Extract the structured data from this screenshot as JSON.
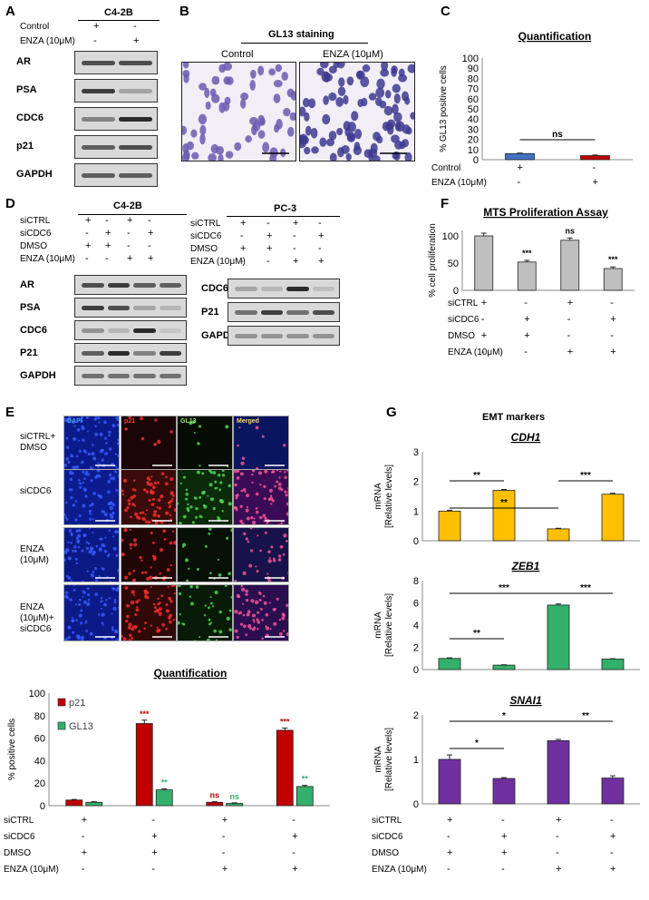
{
  "panels": {
    "a": "A",
    "b": "B",
    "c": "C",
    "d": "D",
    "e": "E",
    "f": "F",
    "g": "G"
  },
  "panelA": {
    "cell_line": "C4-2B",
    "conditions": [
      {
        "label": "Control",
        "values": [
          "+",
          "-"
        ]
      },
      {
        "label": "ENZA (10μM)",
        "values": [
          "-",
          "+"
        ]
      }
    ],
    "blots": [
      "AR",
      "PSA",
      "CDC6",
      "p21",
      "GAPDH"
    ]
  },
  "panelB": {
    "title": "GL13 staining",
    "images": [
      "Control",
      "ENZA (10μM)"
    ]
  },
  "panelD": {
    "left": {
      "cell_line": "C4-2B",
      "blots": [
        "AR",
        "PSA",
        "CDC6",
        "P21",
        "GAPDH"
      ]
    },
    "right": {
      "cell_line": "PC-3",
      "blots": [
        "CDC6",
        "P21",
        "GAPDH"
      ]
    },
    "conditions": [
      {
        "label": "siCTRL",
        "values": [
          "+",
          "-",
          "+",
          "-"
        ]
      },
      {
        "label": "siCDC6",
        "values": [
          "-",
          "+",
          "-",
          "+"
        ]
      },
      {
        "label": "DMSO",
        "values": [
          "+",
          "+",
          "-",
          "-"
        ]
      },
      {
        "label": "ENZA (10μM)",
        "values": [
          "-",
          "-",
          "+",
          "+"
        ]
      }
    ]
  },
  "panelE": {
    "channels": [
      "DAPI",
      "p21",
      "GL13",
      "Merged"
    ],
    "rows": [
      "siCTRL+ DMSO",
      "siCDC6",
      "ENZA (10μM)",
      "ENZA (10μM)+ siCDC6"
    ],
    "channel_colors": [
      "#4aa3ff",
      "#ff3b3b",
      "#9fe26a",
      "#ffd966"
    ]
  },
  "shared_conditions": [
    {
      "label": "siCTRL",
      "values": [
        "+",
        "-",
        "+",
        "-"
      ]
    },
    {
      "label": "siCDC6",
      "values": [
        "-",
        "+",
        "-",
        "+"
      ]
    },
    {
      "label": "DMSO",
      "values": [
        "+",
        "+",
        "-",
        "-"
      ]
    },
    {
      "label": "ENZA (10μM)",
      "values": [
        "-",
        "-",
        "+",
        "+"
      ]
    }
  ],
  "chart_data": [
    {
      "id": "C",
      "type": "bar",
      "title": "Quantification",
      "ylabel": "% GL13 positive cells",
      "ylim": [
        0,
        100
      ],
      "yticks": [
        0,
        10,
        20,
        30,
        40,
        50,
        60,
        70,
        80,
        90,
        100
      ],
      "categories": [
        "Control",
        "ENZA"
      ],
      "values": [
        6,
        4
      ],
      "errors": [
        0.5,
        0.6
      ],
      "colors": [
        "#4472c4",
        "#c00000"
      ],
      "conditions": [
        {
          "label": "Control",
          "values": [
            "+",
            "-"
          ]
        },
        {
          "label": "ENZA (10μM)",
          "values": [
            "-",
            "+"
          ]
        }
      ],
      "annotations": [
        {
          "text": "ns",
          "from": 0,
          "to": 1
        }
      ]
    },
    {
      "id": "F",
      "type": "bar",
      "title": "MTS Proliferation Assay",
      "ylabel": "% cell proliferation",
      "ylim": [
        0,
        110
      ],
      "yticks": [
        0,
        50,
        100
      ],
      "values": [
        100,
        52,
        92,
        40
      ],
      "errors": [
        5,
        3,
        4,
        3
      ],
      "colors": [
        "#bfbfbf",
        "#bfbfbf",
        "#bfbfbf",
        "#bfbfbf"
      ],
      "sig": [
        "",
        "***",
        "ns",
        "***"
      ]
    },
    {
      "id": "E-quant",
      "type": "bar",
      "title": "Quantification",
      "ylabel": "% positive cells",
      "ylim": [
        0,
        100
      ],
      "yticks": [
        0,
        20,
        40,
        60,
        80,
        100
      ],
      "series": [
        {
          "name": "p21",
          "values": [
            5,
            73,
            3,
            67
          ],
          "errors": [
            0.5,
            3,
            0.5,
            2
          ],
          "color": "#c00000",
          "sig": [
            "",
            "***",
            "ns",
            "***"
          ],
          "sig_color": "#c00000"
        },
        {
          "name": "GL13",
          "values": [
            3,
            14,
            2,
            17
          ],
          "errors": [
            0.5,
            1,
            0.5,
            1
          ],
          "color": "#33b06b",
          "sig": [
            "",
            "**",
            "ns",
            "**"
          ],
          "sig_color": "#33b06b"
        }
      ]
    },
    {
      "id": "G-CDH1",
      "type": "bar",
      "title": "CDH1",
      "ylabel": "mRNA [Relative levels]",
      "ylim": [
        0,
        3
      ],
      "yticks": [
        0,
        1,
        2,
        3
      ],
      "values": [
        1.0,
        1.7,
        0.4,
        1.57
      ],
      "errors": [
        0.03,
        0.03,
        0.02,
        0.03
      ],
      "color": "#ffc000",
      "annotations": [
        {
          "text": "**",
          "from": 0,
          "to": 2
        },
        {
          "text": "**",
          "from": 0,
          "to": 1
        },
        {
          "text": "***",
          "from": 2,
          "to": 3
        }
      ]
    },
    {
      "id": "G-ZEB1",
      "type": "bar",
      "title": "ZEB1",
      "ylabel": "mRNA [Relative levels]",
      "ylim": [
        0,
        8
      ],
      "yticks": [
        0,
        2,
        4,
        6,
        8
      ],
      "values": [
        1.0,
        0.4,
        5.8,
        0.95
      ],
      "errors": [
        0.05,
        0.03,
        0.1,
        0.03
      ],
      "color": "#33b06b",
      "annotations": [
        {
          "text": "***",
          "from": 0,
          "to": 2
        },
        {
          "text": "***",
          "from": 2,
          "to": 3
        },
        {
          "text": "**",
          "from": 0,
          "to": 1
        }
      ]
    },
    {
      "id": "G-SNAI1",
      "type": "bar",
      "title": "SNAI1",
      "ylabel": "mRNA [Relative levels]",
      "ylim": [
        0,
        2
      ],
      "yticks": [
        0,
        1,
        2
      ],
      "values": [
        1.0,
        0.57,
        1.42,
        0.58
      ],
      "errors": [
        0.1,
        0.02,
        0.03,
        0.05
      ],
      "color": "#7030a0",
      "annotations": [
        {
          "text": "*",
          "from": 0,
          "to": 2
        },
        {
          "text": "**",
          "from": 2,
          "to": 3
        },
        {
          "text": "*",
          "from": 0,
          "to": 1
        }
      ]
    }
  ],
  "panelG_title": "EMT markers"
}
